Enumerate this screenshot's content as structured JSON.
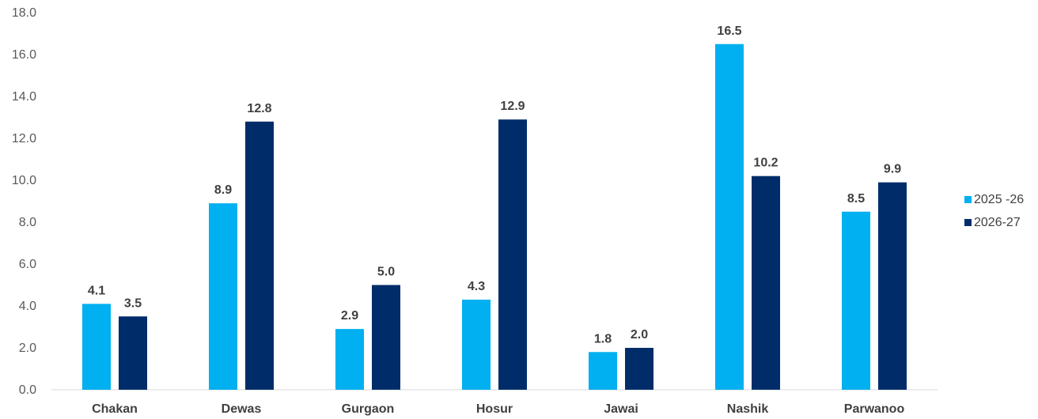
{
  "chart_data": {
    "type": "bar",
    "title": "",
    "xlabel": "",
    "ylabel": "",
    "categories": [
      "Chakan",
      "Dewas",
      "Gurgaon",
      "Hosur",
      "Jawai",
      "Nashik",
      "Parwanoo"
    ],
    "series": [
      {
        "name": "2025 -26",
        "color": "#00B0F0",
        "values": [
          4.1,
          8.9,
          2.9,
          4.3,
          1.8,
          16.5,
          8.5
        ],
        "labels": [
          "4.1",
          "8.9",
          "2.9",
          "4.3",
          "1.8",
          "16.5",
          "8.5"
        ]
      },
      {
        "name": "2026-27",
        "color": "#002D6A",
        "values": [
          3.5,
          12.8,
          5.0,
          12.9,
          2.0,
          10.2,
          9.9
        ],
        "labels": [
          "3.5",
          "12.8",
          "5.0",
          "12.9",
          "2.0",
          "10.2",
          "9.9"
        ]
      }
    ],
    "ylim": [
      0,
      18
    ],
    "yticks": [
      "0.0",
      "2.0",
      "4.0",
      "6.0",
      "8.0",
      "10.0",
      "12.0",
      "14.0",
      "16.0",
      "18.0"
    ],
    "grid": false,
    "legend": "right"
  }
}
